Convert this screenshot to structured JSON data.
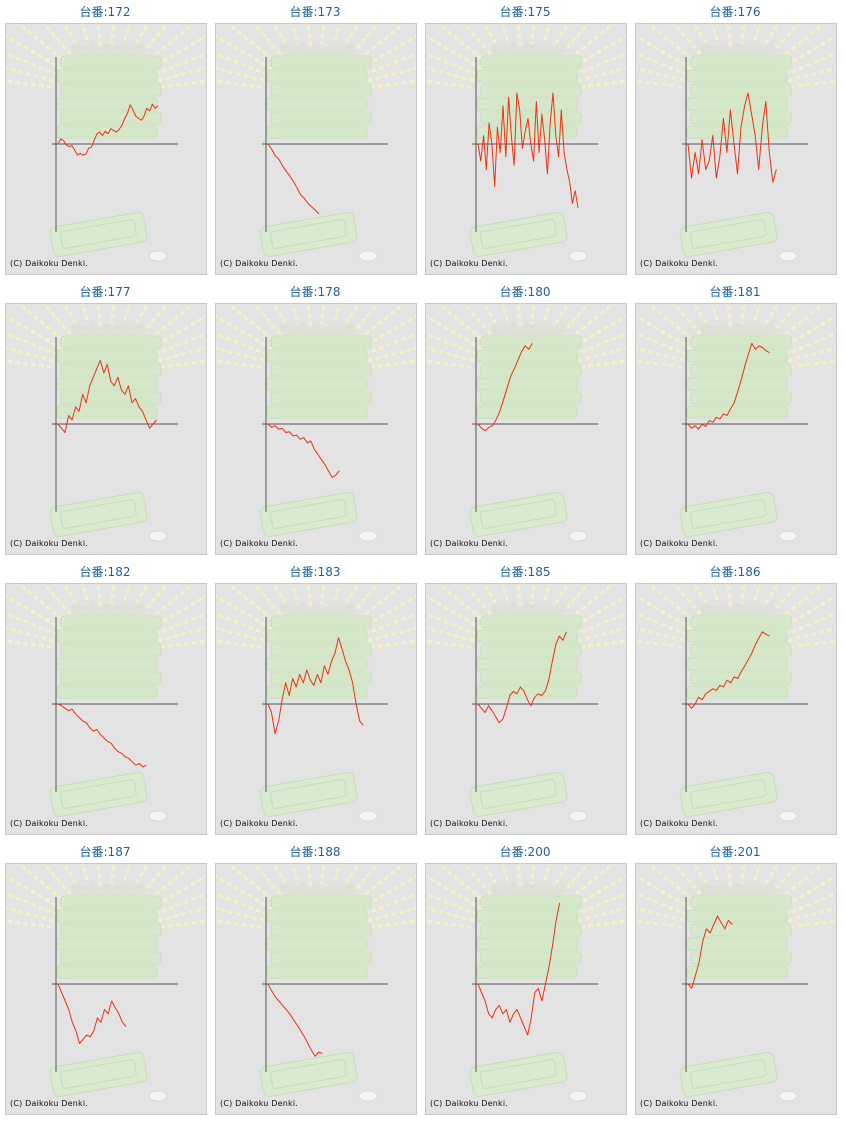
{
  "copyright": "(C) Daikoku Denki.",
  "colors": {
    "title": "#1f5f9a",
    "line": "#ee3311",
    "axis": "#555555",
    "panel": "#e3e3e3"
  },
  "chart_data": [
    {
      "type": "line",
      "title": "台番:172",
      "y": [
        0,
        6,
        4,
        -1,
        -3,
        -2,
        -7,
        -13,
        -11,
        -13,
        -12,
        -5,
        -4,
        4,
        12,
        14,
        10,
        15,
        12,
        18,
        16,
        14,
        17,
        22,
        30,
        36,
        46,
        40,
        33,
        30,
        28,
        33,
        42,
        39,
        47,
        42,
        45
      ]
    },
    {
      "type": "line",
      "title": "台番:173",
      "y": [
        0,
        -6,
        -14,
        -18,
        -26,
        -32,
        -38,
        -44,
        -52,
        -60,
        -64,
        -70,
        -74,
        -78,
        -82
      ]
    },
    {
      "type": "line",
      "title": "台番:175",
      "y": [
        0,
        -20,
        10,
        -30,
        25,
        0,
        -50,
        20,
        -10,
        45,
        -15,
        55,
        10,
        -25,
        60,
        40,
        -5,
        15,
        30,
        0,
        -20,
        50,
        -10,
        35,
        5,
        -35,
        25,
        60,
        10,
        -15,
        40,
        -10,
        -30,
        -45,
        -70,
        -55,
        -75
      ]
    },
    {
      "type": "line",
      "title": "台番:176",
      "y": [
        0,
        -40,
        -10,
        -35,
        5,
        -30,
        -20,
        10,
        -40,
        -15,
        30,
        -10,
        40,
        0,
        -35,
        20,
        45,
        60,
        35,
        10,
        -30,
        20,
        50,
        -10,
        -45,
        -30
      ]
    },
    {
      "type": "line",
      "title": "台番:177",
      "y": [
        0,
        -5,
        -10,
        10,
        5,
        20,
        15,
        35,
        25,
        45,
        55,
        65,
        75,
        60,
        70,
        50,
        45,
        55,
        40,
        35,
        45,
        25,
        30,
        20,
        15,
        5,
        -5,
        0,
        5
      ]
    },
    {
      "type": "line",
      "title": "台番:178",
      "y": [
        0,
        -4,
        -2,
        -6,
        -5,
        -10,
        -9,
        -14,
        -13,
        -18,
        -16,
        -22,
        -20,
        -30,
        -36,
        -42,
        -48,
        -56,
        -63,
        -60,
        -55
      ]
    },
    {
      "type": "line",
      "title": "台番:180",
      "y": [
        0,
        -5,
        -8,
        -4,
        -2,
        5,
        15,
        28,
        42,
        56,
        65,
        75,
        85,
        92,
        88,
        95
      ]
    },
    {
      "type": "line",
      "title": "台番:181",
      "y": [
        0,
        -5,
        -2,
        -6,
        0,
        -3,
        4,
        2,
        8,
        6,
        12,
        10,
        18,
        25,
        38,
        52,
        68,
        82,
        95,
        88,
        92,
        90,
        86,
        84
      ]
    },
    {
      "type": "line",
      "title": "台番:182",
      "y": [
        0,
        -2,
        -5,
        -8,
        -6,
        -12,
        -16,
        -20,
        -22,
        -28,
        -32,
        -30,
        -36,
        -40,
        -44,
        -46,
        -52,
        -56,
        -58,
        -62,
        -64,
        -68,
        -72,
        -70,
        -74,
        -72
      ]
    },
    {
      "type": "line",
      "title": "台番:183",
      "y": [
        0,
        -10,
        -35,
        -20,
        5,
        25,
        10,
        30,
        20,
        35,
        25,
        40,
        28,
        22,
        35,
        25,
        45,
        35,
        50,
        60,
        78,
        65,
        50,
        40,
        25,
        0,
        -20,
        -25
      ]
    },
    {
      "type": "line",
      "title": "台番:185",
      "y": [
        0,
        -5,
        -10,
        -2,
        -8,
        -15,
        -22,
        -18,
        -5,
        10,
        15,
        12,
        20,
        15,
        5,
        -2,
        8,
        12,
        10,
        15,
        28,
        50,
        70,
        80,
        75,
        85
      ]
    },
    {
      "type": "line",
      "title": "台番:186",
      "y": [
        0,
        -5,
        0,
        8,
        5,
        12,
        15,
        18,
        16,
        22,
        20,
        28,
        25,
        32,
        30,
        38,
        45,
        52,
        60,
        70,
        78,
        85,
        82,
        80
      ]
    },
    {
      "type": "line",
      "title": "台番:187",
      "y": [
        0,
        -10,
        -20,
        -30,
        -45,
        -55,
        -70,
        -65,
        -60,
        -62,
        -55,
        -40,
        -45,
        -30,
        -35,
        -20,
        -28,
        -35,
        -45,
        -50
      ]
    },
    {
      "type": "line",
      "title": "台番:188",
      "y": [
        0,
        -8,
        -15,
        -20,
        -25,
        -30,
        -35,
        -42,
        -48,
        -55,
        -62,
        -70,
        -78,
        -85,
        -80,
        -82
      ]
    },
    {
      "type": "line",
      "title": "台番:200",
      "y": [
        0,
        -10,
        -20,
        -35,
        -40,
        -30,
        -25,
        -35,
        -30,
        -45,
        -35,
        -30,
        -40,
        -50,
        -60,
        -40,
        -10,
        -5,
        -20,
        0,
        20,
        45,
        75,
        105
      ]
    },
    {
      "type": "line",
      "title": "台番:201",
      "y": [
        0,
        -5,
        10,
        25,
        50,
        65,
        60,
        70,
        80,
        72,
        65,
        75,
        70
      ]
    }
  ]
}
